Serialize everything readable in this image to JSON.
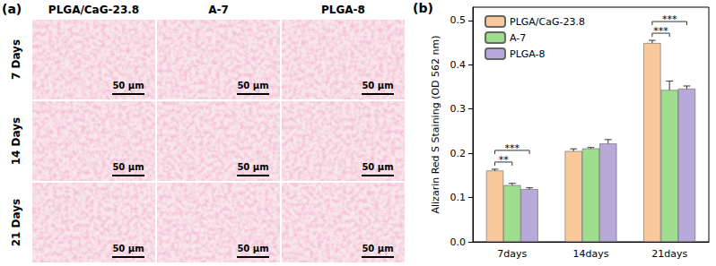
{
  "panel_a": {
    "label": "(a)",
    "columns": [
      "PLGA/CaG-23.8",
      "A-7",
      "PLGA-8"
    ],
    "rows": [
      "7 Days",
      "14 Days",
      "21 Days"
    ],
    "scale_bar": "50 μm"
  },
  "panel_b": {
    "label": "(b)"
  },
  "chart_data": {
    "type": "bar",
    "ylabel": "Alizarin Red S Staining (OD 562 nm)",
    "categories": [
      "7days",
      "14days",
      "21days"
    ],
    "series": [
      {
        "name": "PLGA/CaG-23.8",
        "color": "#f9c89b",
        "values": [
          0.161,
          0.205,
          0.449
        ],
        "errors": [
          0.003,
          0.005,
          0.006
        ]
      },
      {
        "name": "A-7",
        "color": "#9fdc8e",
        "values": [
          0.128,
          0.211,
          0.343
        ],
        "errors": [
          0.004,
          0.002,
          0.02
        ]
      },
      {
        "name": "PLGA-8",
        "color": "#b9a8da",
        "values": [
          0.119,
          0.222,
          0.346
        ],
        "errors": [
          0.003,
          0.009,
          0.006
        ]
      }
    ],
    "ylim": [
      0,
      0.53
    ],
    "yticks": [
      {
        "value": 0,
        "label": "0.0"
      },
      0.1,
      0.2,
      0.3,
      0.4,
      0.5
    ],
    "grid": false,
    "legend": "upper left",
    "annotations": [
      {
        "category": "7days",
        "from": "PLGA/CaG-23.8",
        "to": "A-7",
        "text": "**"
      },
      {
        "category": "7days",
        "from": "PLGA/CaG-23.8",
        "to": "PLGA-8",
        "text": "***"
      },
      {
        "category": "21days",
        "from": "PLGA/CaG-23.8",
        "to": "A-7",
        "text": "***"
      },
      {
        "category": "21days",
        "from": "PLGA/CaG-23.8",
        "to": "PLGA-8",
        "text": "***"
      }
    ]
  }
}
